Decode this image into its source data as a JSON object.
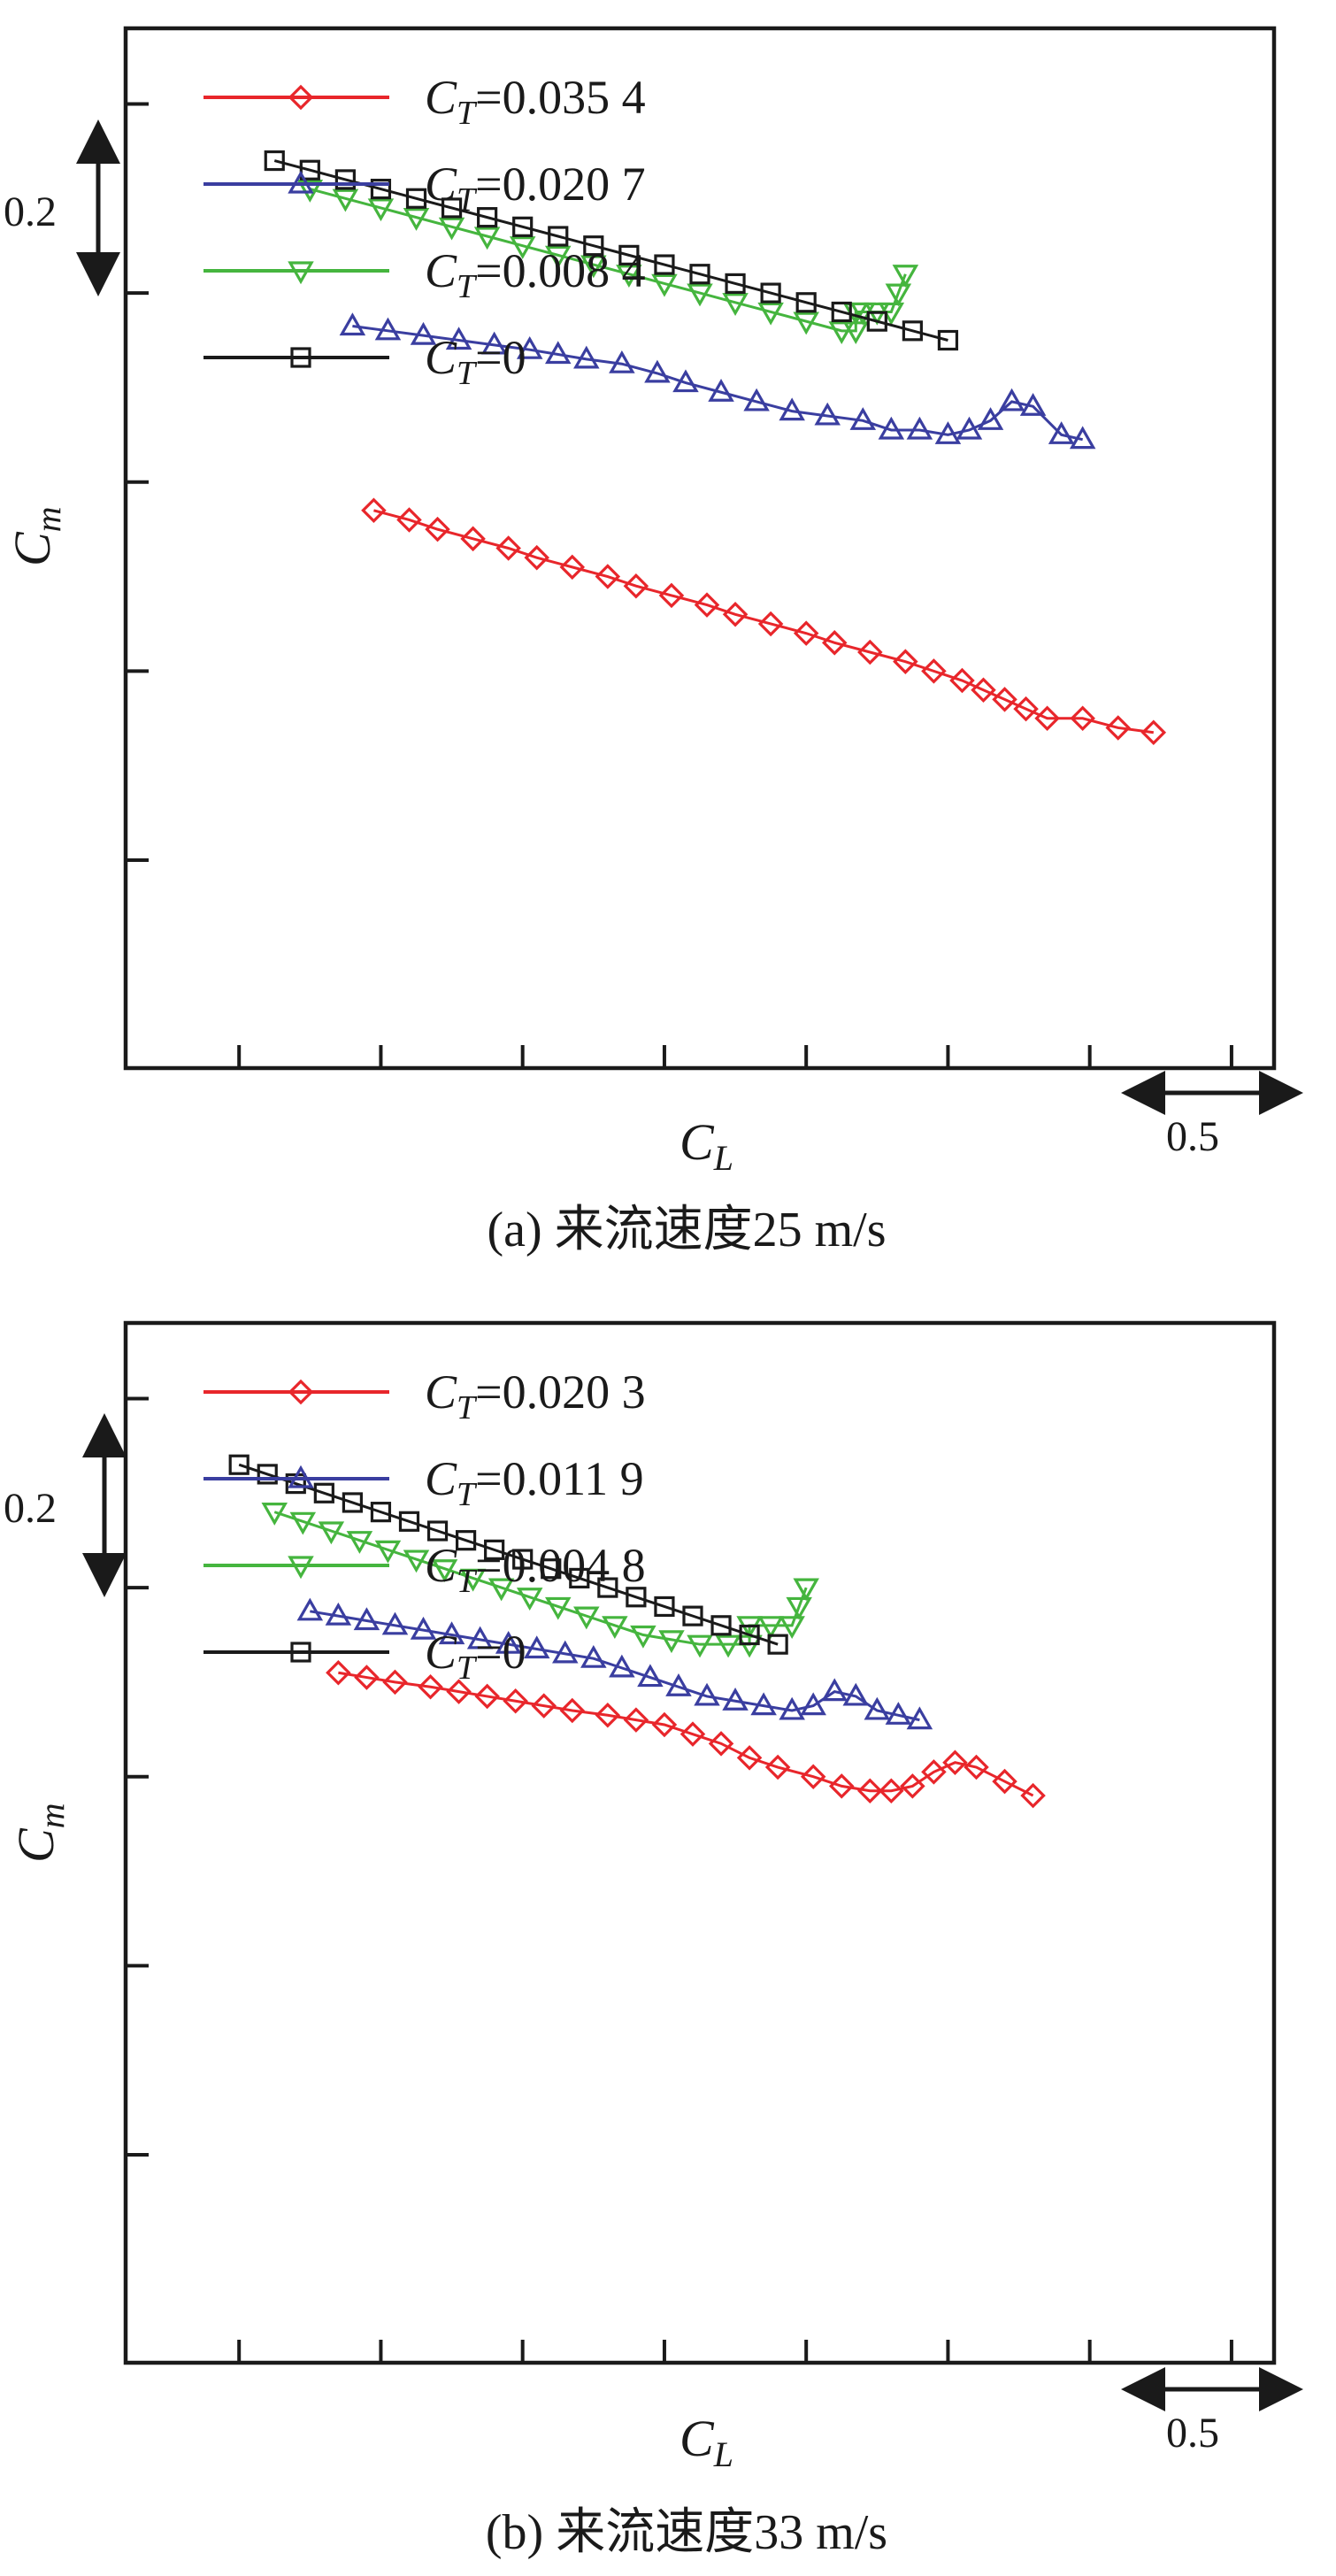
{
  "chart_data": [
    {
      "type": "line",
      "caption": "(a) 来流速度25 m/s",
      "xlabel": "C",
      "xlabel_sub": "L",
      "ylabel": "C",
      "ylabel_sub": "m",
      "x_scale_label": "0.5",
      "y_scale_label": "0.2",
      "xlim": [
        -0.16,
        1.46
      ],
      "ylim": [
        -0.42,
        0.68
      ],
      "grid": false,
      "legend_position": "top-left",
      "series": [
        {
          "name": "C_T=0.035 4",
          "legend_main": "C",
          "legend_sub": "T",
          "legend_value": "=0.035 4",
          "color": "#e8262b",
          "marker": "diamond",
          "x": [
            0.19,
            0.24,
            0.28,
            0.33,
            0.38,
            0.42,
            0.47,
            0.52,
            0.56,
            0.61,
            0.66,
            0.7,
            0.75,
            0.8,
            0.84,
            0.89,
            0.94,
            0.98,
            1.02,
            1.05,
            1.08,
            1.11,
            1.14,
            1.19,
            1.24,
            1.29
          ],
          "y": [
            0.17,
            0.16,
            0.15,
            0.14,
            0.13,
            0.12,
            0.11,
            0.1,
            0.09,
            0.08,
            0.07,
            0.06,
            0.05,
            0.04,
            0.03,
            0.02,
            0.01,
            0.0,
            -0.01,
            -0.02,
            -0.03,
            -0.04,
            -0.05,
            -0.05,
            -0.06,
            -0.065
          ]
        },
        {
          "name": "C_T=0.020 7",
          "legend_main": "C",
          "legend_sub": "T",
          "legend_value": "=0.020 7",
          "color": "#3a3ea0",
          "marker": "triangle-up",
          "x": [
            0.16,
            0.21,
            0.26,
            0.31,
            0.36,
            0.41,
            0.45,
            0.49,
            0.54,
            0.59,
            0.63,
            0.68,
            0.73,
            0.78,
            0.83,
            0.88,
            0.92,
            0.96,
            1.0,
            1.03,
            1.06,
            1.09,
            1.12,
            1.16,
            1.19
          ],
          "y": [
            0.365,
            0.36,
            0.355,
            0.35,
            0.345,
            0.34,
            0.335,
            0.33,
            0.325,
            0.315,
            0.305,
            0.295,
            0.285,
            0.275,
            0.27,
            0.265,
            0.255,
            0.255,
            0.25,
            0.255,
            0.265,
            0.285,
            0.28,
            0.25,
            0.245
          ]
        },
        {
          "name": "C_T=0.008 4",
          "legend_main": "C",
          "legend_sub": "T",
          "legend_value": "=0.008 4",
          "color": "#45b53e",
          "marker": "triangle-down",
          "x": [
            0.1,
            0.15,
            0.2,
            0.25,
            0.3,
            0.35,
            0.4,
            0.45,
            0.5,
            0.55,
            0.6,
            0.65,
            0.7,
            0.75,
            0.8,
            0.85,
            0.87,
            0.87,
            0.88,
            0.9,
            0.92,
            0.93,
            0.94
          ],
          "y": [
            0.51,
            0.5,
            0.49,
            0.48,
            0.47,
            0.46,
            0.45,
            0.44,
            0.43,
            0.42,
            0.41,
            0.4,
            0.39,
            0.38,
            0.37,
            0.36,
            0.36,
            0.38,
            0.38,
            0.38,
            0.38,
            0.4,
            0.42
          ]
        },
        {
          "name": "C_T=0",
          "legend_main": "C",
          "legend_sub": "T",
          "legend_value": "=0",
          "color": "#1a1a1a",
          "marker": "square",
          "x": [
            0.05,
            0.1,
            0.15,
            0.2,
            0.25,
            0.3,
            0.35,
            0.4,
            0.45,
            0.5,
            0.55,
            0.6,
            0.65,
            0.7,
            0.75,
            0.8,
            0.85,
            0.9,
            0.95,
            1.0
          ],
          "y": [
            0.54,
            0.53,
            0.52,
            0.51,
            0.5,
            0.49,
            0.48,
            0.47,
            0.46,
            0.45,
            0.44,
            0.43,
            0.42,
            0.41,
            0.4,
            0.39,
            0.38,
            0.37,
            0.36,
            0.35
          ]
        }
      ]
    },
    {
      "type": "line",
      "caption": "(b) 来流速度33 m/s",
      "xlabel": "C",
      "xlabel_sub": "L",
      "ylabel": "C",
      "ylabel_sub": "m",
      "x_scale_label": "0.5",
      "y_scale_label": "0.2",
      "xlim": [
        -0.16,
        1.46
      ],
      "ylim": [
        -0.42,
        0.68
      ],
      "grid": false,
      "legend_position": "top-left",
      "series": [
        {
          "name": "C_T=0.020 3",
          "legend_main": "C",
          "legend_sub": "T",
          "legend_value": "=0.020 3",
          "color": "#e8262b",
          "marker": "diamond",
          "x": [
            0.14,
            0.18,
            0.22,
            0.27,
            0.31,
            0.35,
            0.39,
            0.43,
            0.47,
            0.52,
            0.56,
            0.6,
            0.64,
            0.68,
            0.72,
            0.76,
            0.81,
            0.85,
            0.89,
            0.92,
            0.95,
            0.98,
            1.01,
            1.04,
            1.08,
            1.12
          ],
          "y": [
            0.31,
            0.305,
            0.3,
            0.295,
            0.29,
            0.285,
            0.28,
            0.275,
            0.27,
            0.265,
            0.26,
            0.255,
            0.245,
            0.235,
            0.22,
            0.21,
            0.2,
            0.19,
            0.185,
            0.185,
            0.19,
            0.205,
            0.215,
            0.21,
            0.195,
            0.18
          ]
        },
        {
          "name": "C_T=0.011 9",
          "legend_main": "C",
          "legend_sub": "T",
          "legend_value": "=0.011 9",
          "color": "#3a3ea0",
          "marker": "triangle-up",
          "x": [
            0.1,
            0.14,
            0.18,
            0.22,
            0.26,
            0.3,
            0.34,
            0.38,
            0.42,
            0.46,
            0.5,
            0.54,
            0.58,
            0.62,
            0.66,
            0.7,
            0.74,
            0.78,
            0.81,
            0.84,
            0.87,
            0.9,
            0.93,
            0.96
          ],
          "y": [
            0.375,
            0.37,
            0.365,
            0.36,
            0.355,
            0.35,
            0.345,
            0.34,
            0.335,
            0.33,
            0.325,
            0.315,
            0.305,
            0.295,
            0.285,
            0.28,
            0.275,
            0.27,
            0.275,
            0.29,
            0.285,
            0.27,
            0.265,
            0.26
          ]
        },
        {
          "name": "C_T=0.004 8",
          "legend_main": "C",
          "legend_sub": "T",
          "legend_value": "=0.004 8",
          "color": "#45b53e",
          "marker": "triangle-down",
          "x": [
            0.05,
            0.09,
            0.13,
            0.17,
            0.21,
            0.25,
            0.29,
            0.33,
            0.37,
            0.41,
            0.45,
            0.49,
            0.53,
            0.57,
            0.61,
            0.65,
            0.69,
            0.72,
            0.72,
            0.75,
            0.78,
            0.79,
            0.8
          ],
          "y": [
            0.48,
            0.47,
            0.46,
            0.45,
            0.44,
            0.43,
            0.42,
            0.41,
            0.4,
            0.39,
            0.38,
            0.37,
            0.36,
            0.35,
            0.345,
            0.34,
            0.34,
            0.34,
            0.36,
            0.36,
            0.36,
            0.38,
            0.4
          ]
        },
        {
          "name": "C_T=0",
          "legend_main": "C",
          "legend_sub": "T",
          "legend_value": "=0",
          "color": "#1a1a1a",
          "marker": "square",
          "x": [
            0.0,
            0.04,
            0.08,
            0.12,
            0.16,
            0.2,
            0.24,
            0.28,
            0.32,
            0.36,
            0.4,
            0.44,
            0.48,
            0.52,
            0.56,
            0.6,
            0.64,
            0.68,
            0.72,
            0.76
          ],
          "y": [
            0.53,
            0.52,
            0.51,
            0.5,
            0.49,
            0.48,
            0.47,
            0.46,
            0.45,
            0.44,
            0.43,
            0.42,
            0.41,
            0.4,
            0.39,
            0.38,
            0.37,
            0.36,
            0.35,
            0.34
          ]
        }
      ]
    }
  ]
}
